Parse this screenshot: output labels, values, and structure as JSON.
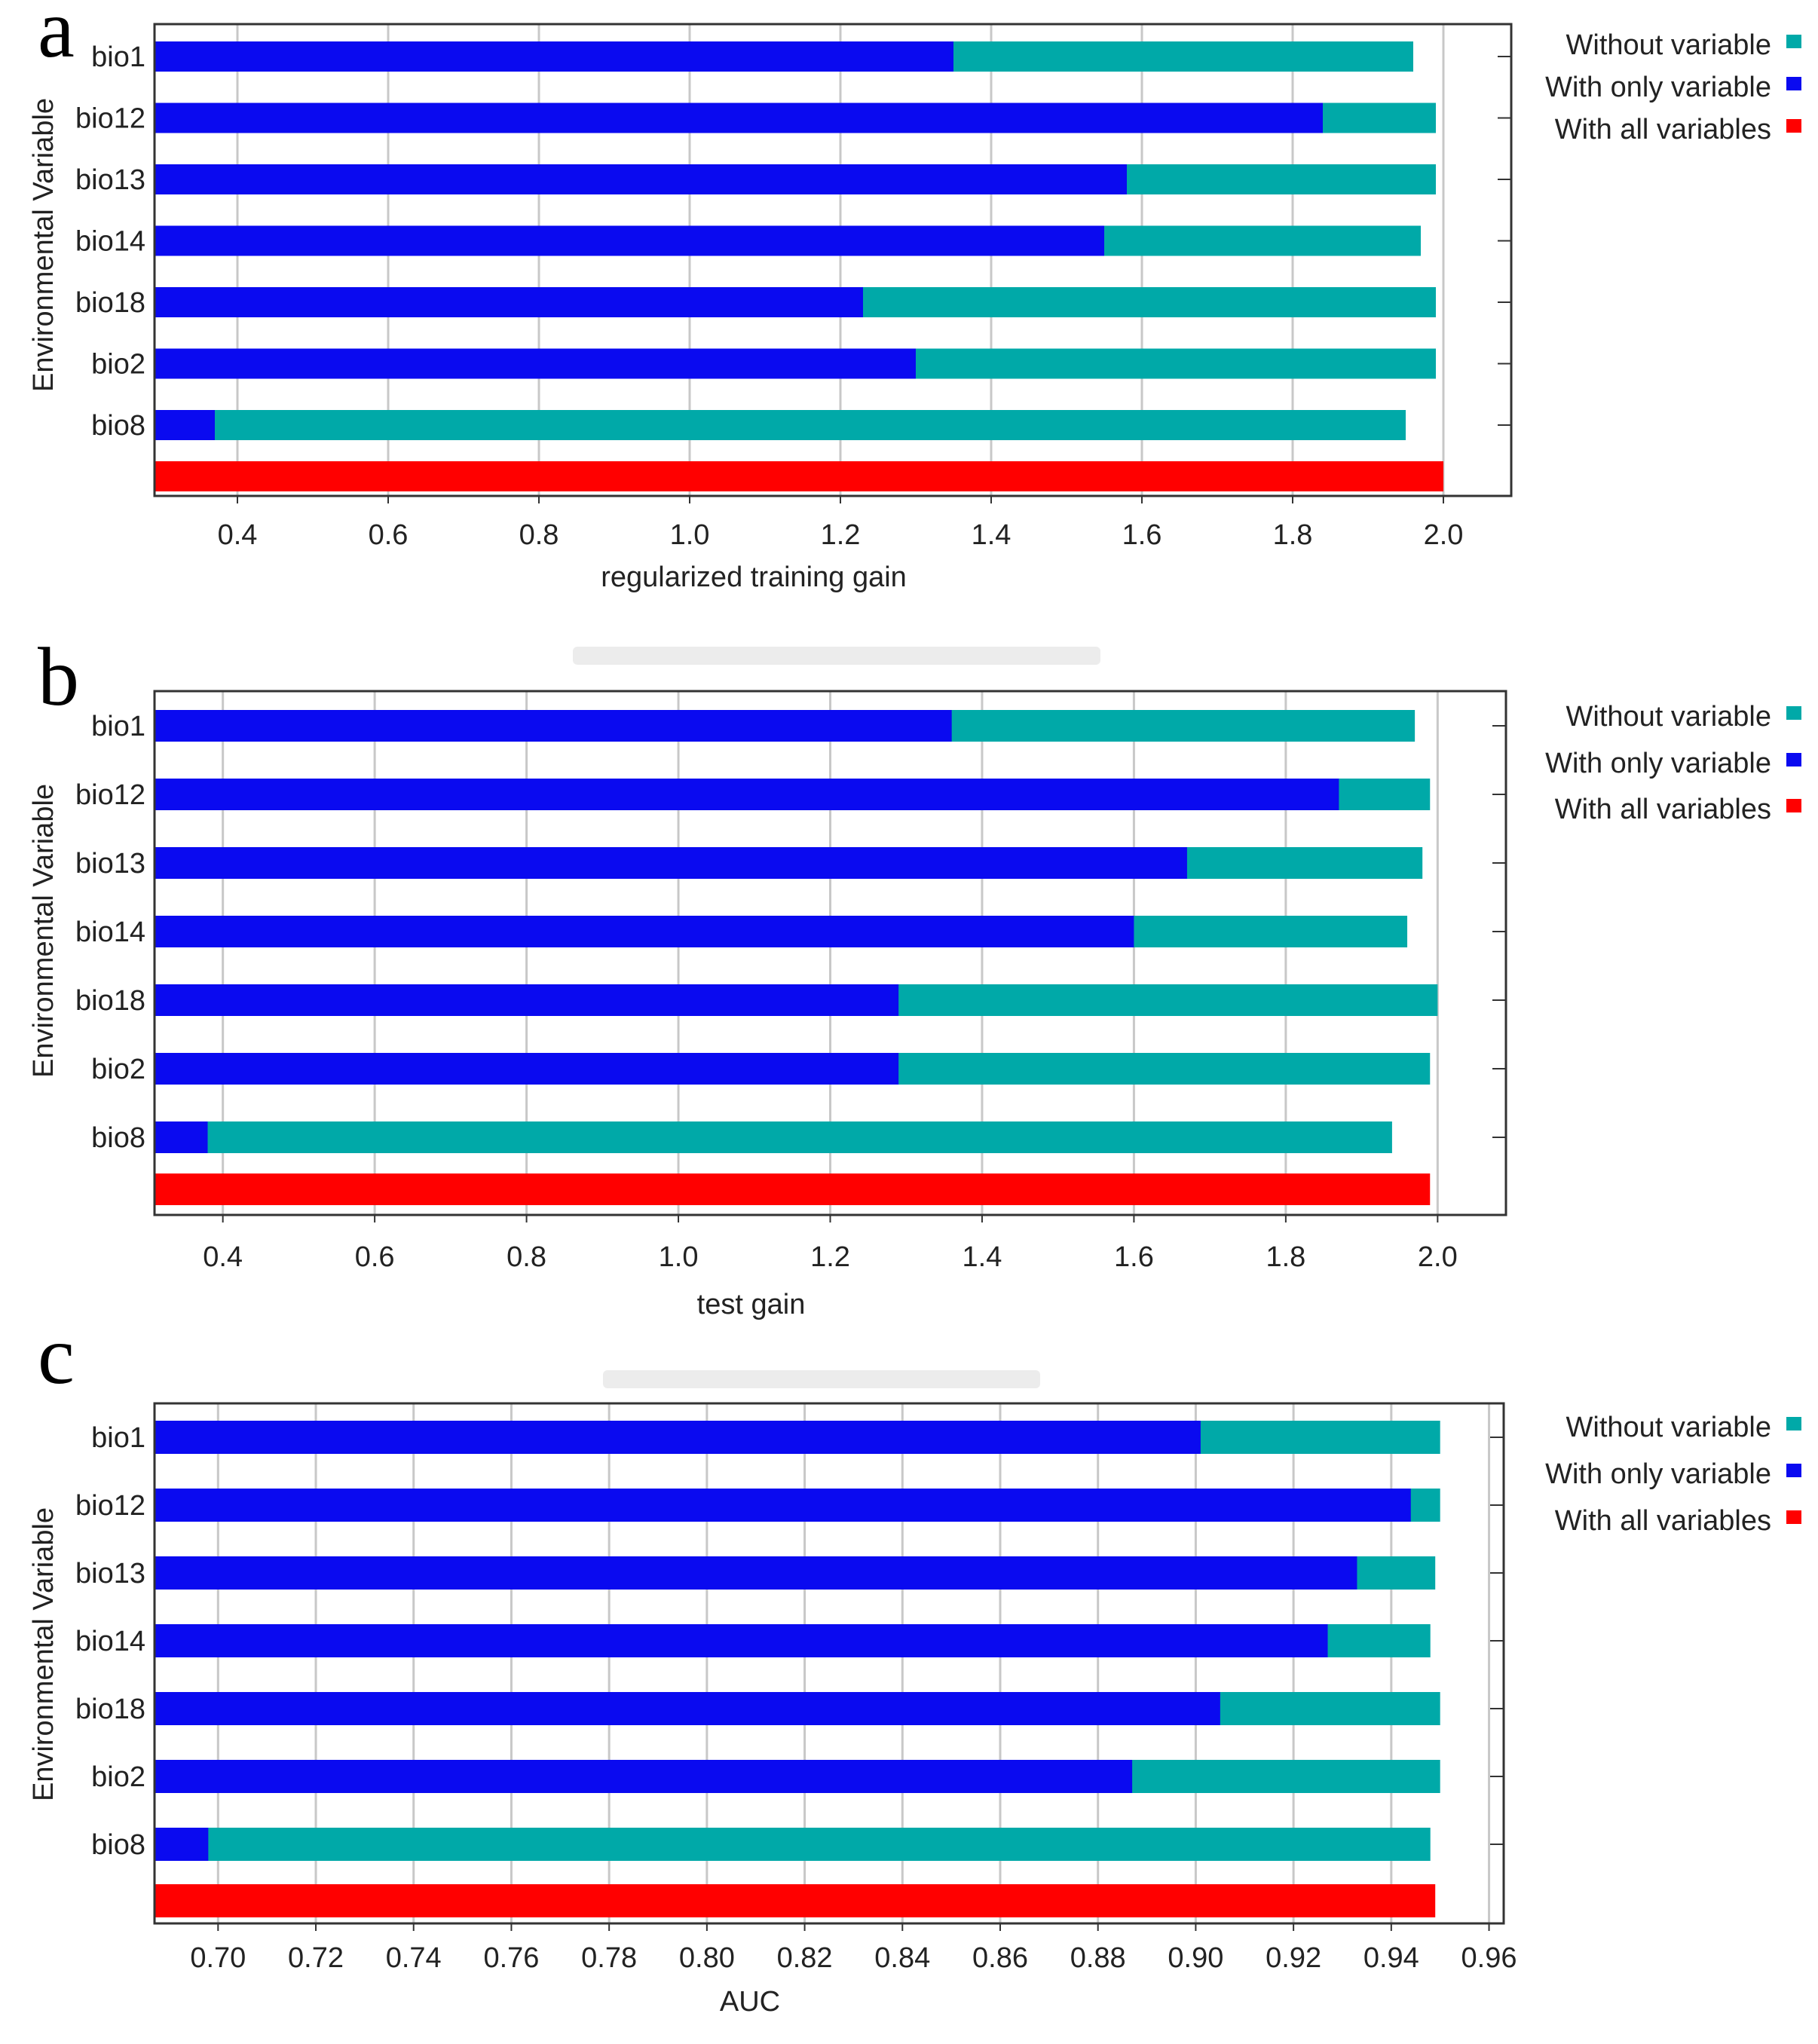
{
  "colors": {
    "without": "#00A9A8",
    "only": "#0A0AF0",
    "all": "#FF0000",
    "grid": "#c8c8c8"
  },
  "chart_data": [
    {
      "panel": "a",
      "type": "bar",
      "orientation": "horizontal",
      "xlabel": "regularized training gain",
      "ylabel": "Environmental Variable",
      "xlim": [
        0.29,
        2.09
      ],
      "xticks": [
        "0.4",
        "0.6",
        "0.8",
        "1.0",
        "1.2",
        "1.4",
        "1.6",
        "1.8",
        "2.0"
      ],
      "categories": [
        "bio1",
        "bio12",
        "bio13",
        "bio14",
        "bio18",
        "bio2",
        "bio8"
      ],
      "series": [
        {
          "name": "Without variable",
          "values": [
            1.96,
            1.99,
            1.99,
            1.97,
            1.99,
            1.99,
            1.95
          ]
        },
        {
          "name": "With only variable",
          "values": [
            1.35,
            1.84,
            1.58,
            1.55,
            1.23,
            1.3,
            0.37
          ]
        }
      ],
      "all_variables": 2.0,
      "legend": [
        "Without variable",
        "With only variable",
        "With all variables"
      ]
    },
    {
      "panel": "b",
      "type": "bar",
      "orientation": "horizontal",
      "xlabel": "test gain",
      "ylabel": "Environmental Variable",
      "xlim": [
        0.31,
        2.09
      ],
      "xticks": [
        "0.4",
        "0.6",
        "0.8",
        "1.0",
        "1.2",
        "1.4",
        "1.6",
        "1.8",
        "2.0"
      ],
      "categories": [
        "bio1",
        "bio12",
        "bio13",
        "bio14",
        "bio18",
        "bio2",
        "bio8"
      ],
      "series": [
        {
          "name": "Without variable",
          "values": [
            1.97,
            1.99,
            1.98,
            1.96,
            2.0,
            1.99,
            1.94
          ]
        },
        {
          "name": "With only variable",
          "values": [
            1.36,
            1.87,
            1.67,
            1.6,
            1.29,
            1.29,
            0.38
          ]
        }
      ],
      "all_variables": 1.99,
      "legend": [
        "Without variable",
        "With only variable",
        "With all variables"
      ]
    },
    {
      "panel": "c",
      "type": "bar",
      "orientation": "horizontal",
      "xlabel": "AUC",
      "ylabel": "Environmental Variable",
      "xlim": [
        0.687,
        0.963
      ],
      "xticks": [
        "0.70",
        "0.72",
        "0.74",
        "0.76",
        "0.78",
        "0.80",
        "0.82",
        "0.84",
        "0.86",
        "0.88",
        "0.90",
        "0.92",
        "0.94",
        "0.96"
      ],
      "categories": [
        "bio1",
        "bio12",
        "bio13",
        "bio14",
        "bio18",
        "bio2",
        "bio8"
      ],
      "series": [
        {
          "name": "Without variable",
          "values": [
            0.95,
            0.95,
            0.949,
            0.948,
            0.95,
            0.95,
            0.948
          ]
        },
        {
          "name": "With only variable",
          "values": [
            0.901,
            0.944,
            0.933,
            0.927,
            0.905,
            0.887,
            0.698
          ]
        }
      ],
      "all_variables": 0.949,
      "legend": [
        "Without variable",
        "With only variable",
        "With all variables"
      ]
    }
  ]
}
